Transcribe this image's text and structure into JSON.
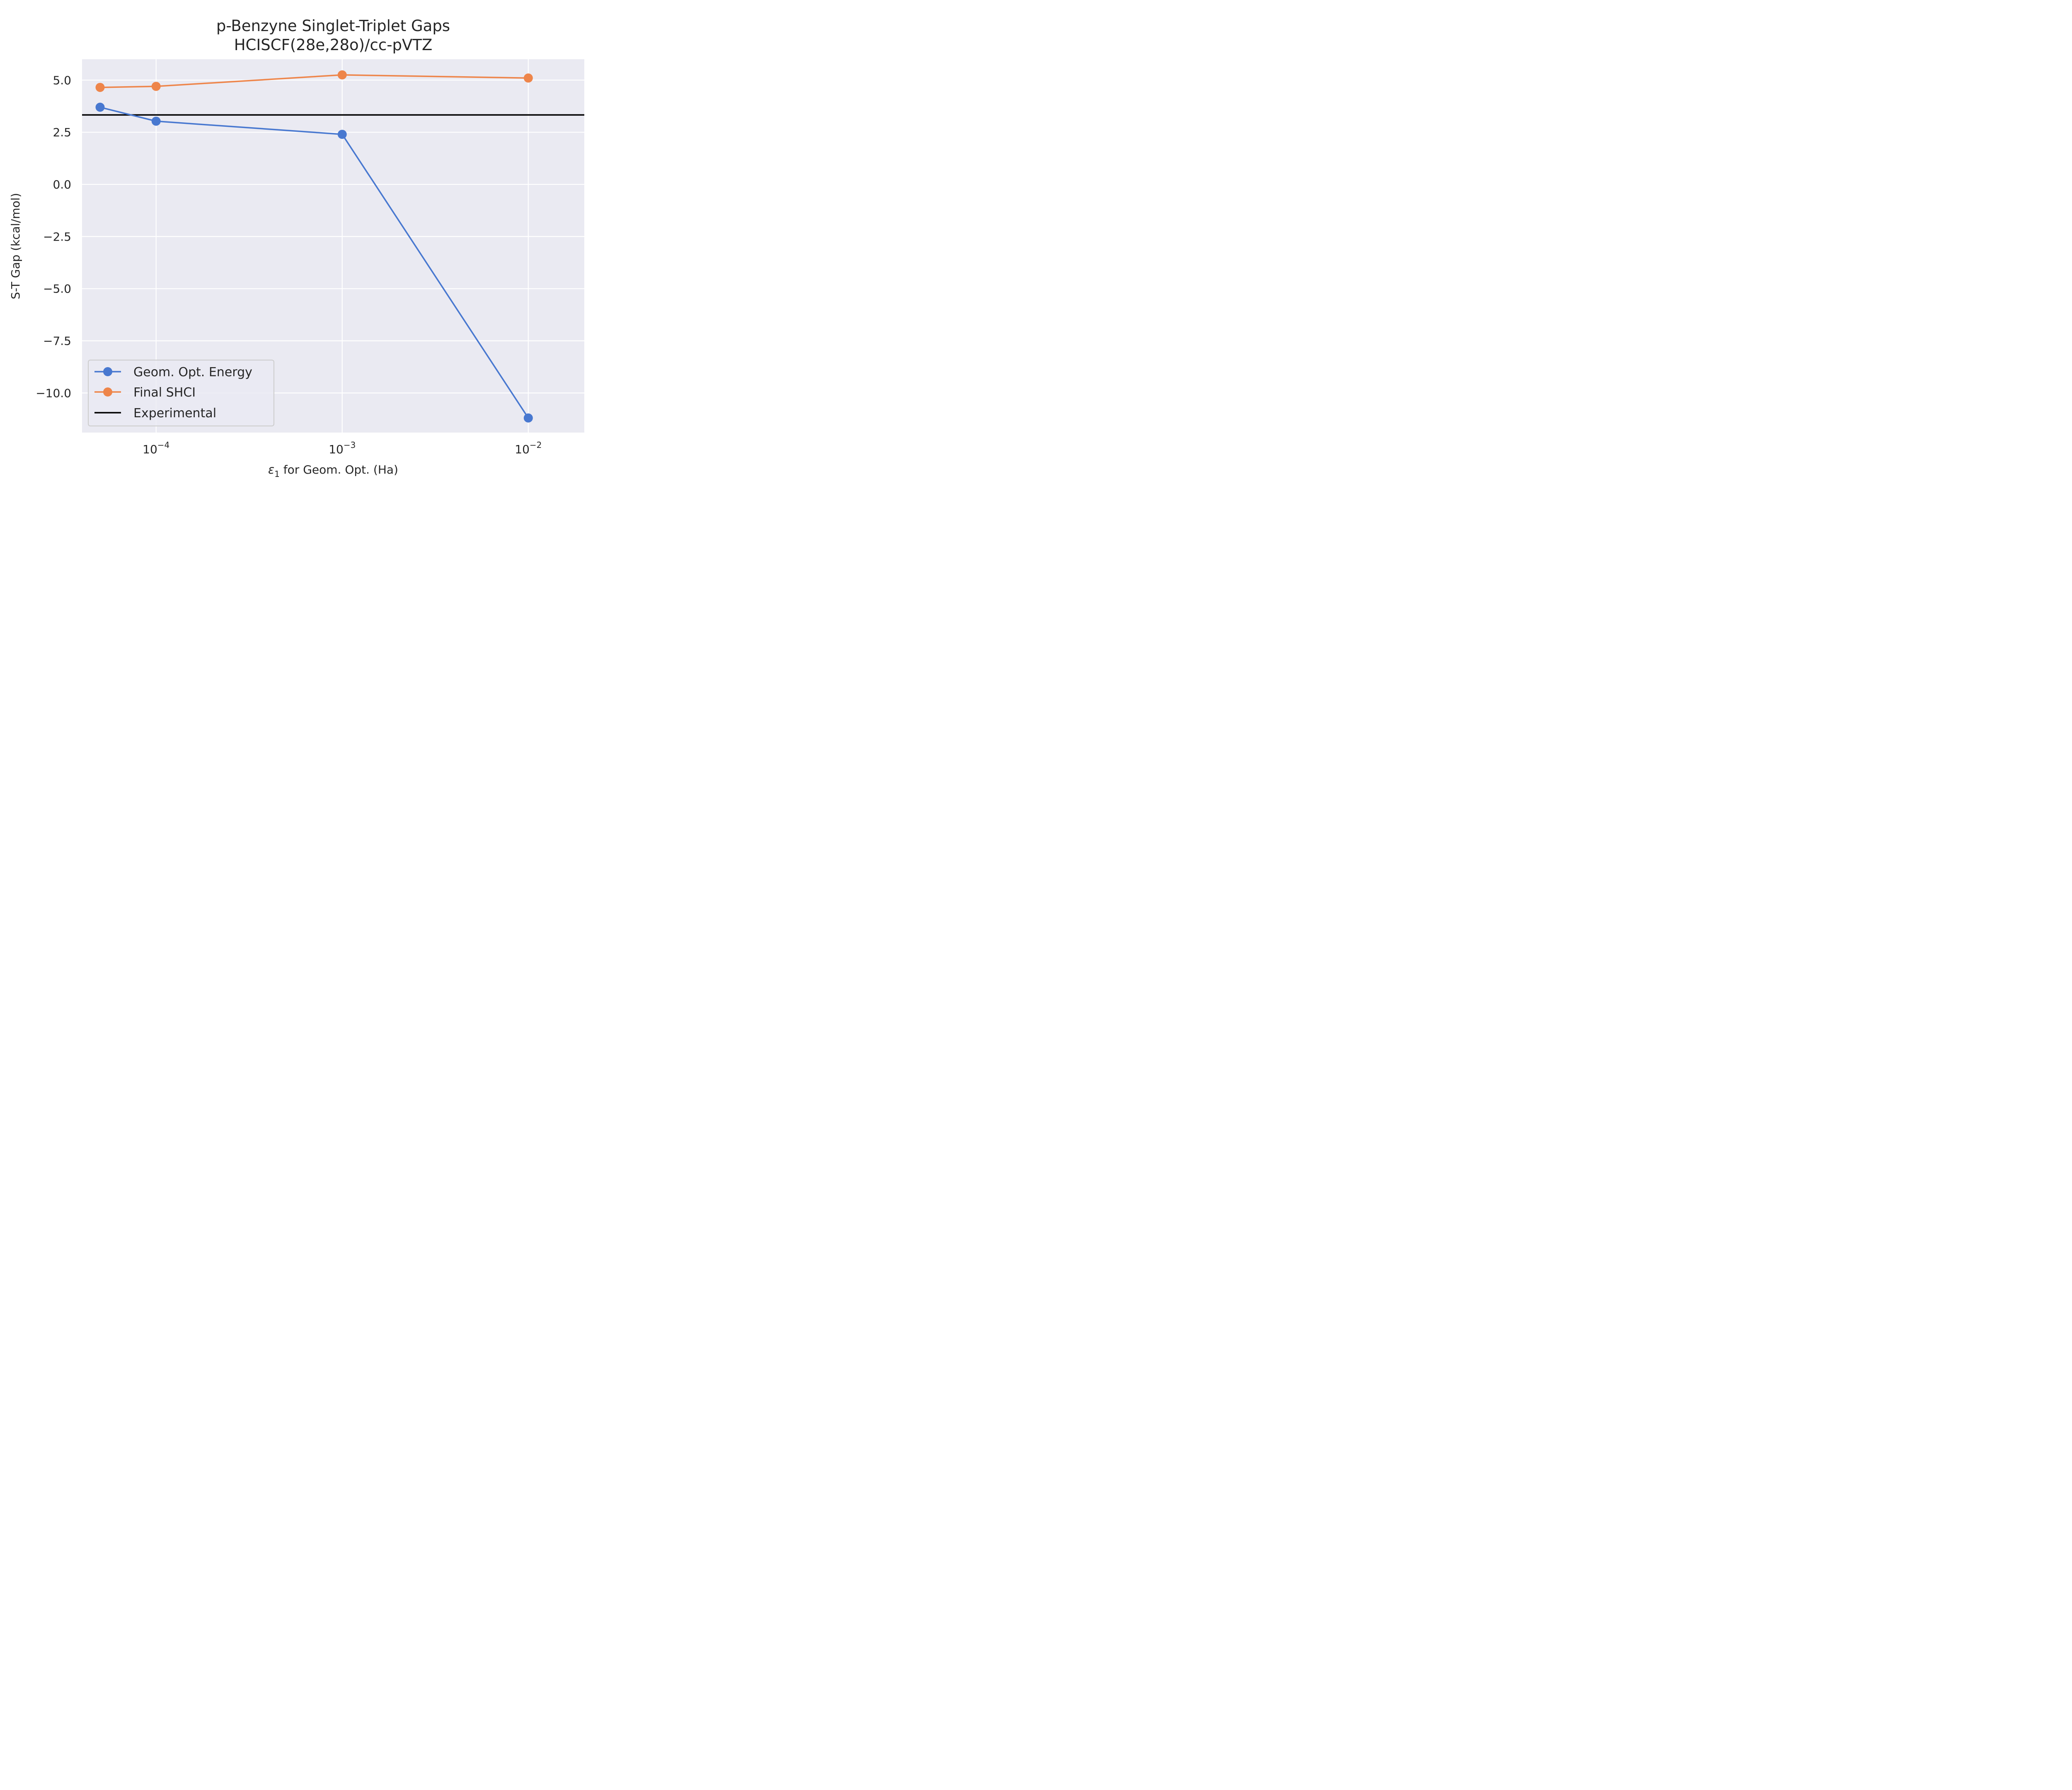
{
  "chart_data": {
    "type": "line",
    "title": "p-Benzyne Singlet-Triplet Gaps",
    "subtitle": "HCISCF(28e,28o)/cc-pVTZ",
    "xlabel": "ε1 for Geom. Opt. (Ha)",
    "ylabel": "S-T Gap (kcal/mol)",
    "x_scale": "log",
    "xlim": [
      4e-05,
      0.02
    ],
    "ylim": [
      -11.9,
      6.0
    ],
    "x_ticks": [
      0.0001,
      0.001,
      0.01
    ],
    "x_tick_labels": [
      {
        "base": "10",
        "exp": "−4"
      },
      {
        "base": "10",
        "exp": "−3"
      },
      {
        "base": "10",
        "exp": "−2"
      }
    ],
    "y_ticks": [
      5.0,
      2.5,
      0.0,
      -2.5,
      -5.0,
      -7.5,
      -10.0
    ],
    "y_tick_labels": [
      "5.0",
      "2.5",
      "0.0",
      "−2.5",
      "−5.0",
      "−7.5",
      "−10.0"
    ],
    "grid": true,
    "legend_position": "lower-left",
    "x": [
      5e-05,
      0.0001,
      0.001,
      0.01
    ],
    "series": [
      {
        "name": "Geom. Opt. Energy",
        "values": [
          3.7,
          3.03,
          2.4,
          -11.2
        ],
        "color": "#4878d0",
        "marker": "circle"
      },
      {
        "name": "Final SHCI",
        "values": [
          4.65,
          4.7,
          5.25,
          5.1
        ],
        "color": "#ee854a",
        "marker": "circle"
      }
    ],
    "reference_line": {
      "name": "Experimental",
      "value": 3.33,
      "color": "#000000"
    }
  }
}
